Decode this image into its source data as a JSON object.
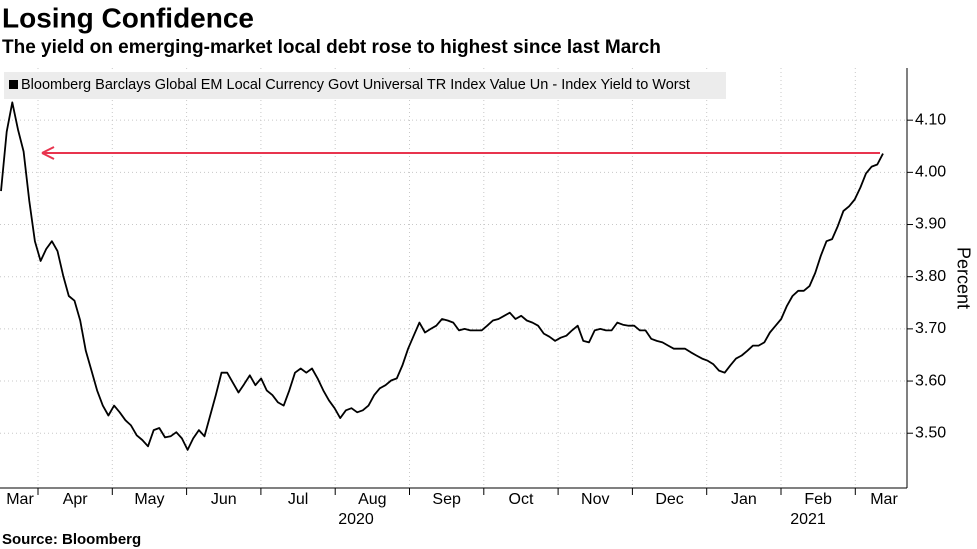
{
  "chart_data": {
    "type": "line",
    "title": "Losing Confidence",
    "subtitle": "The yield on emerging-market local debt rose to highest since last March",
    "source": "Source: Bloomberg",
    "y_axis_label": "Percent",
    "x_axis_labels": [
      "Mar",
      "Apr",
      "May",
      "Jun",
      "Jul",
      "Aug",
      "Sep",
      "Oct",
      "Nov",
      "Dec",
      "Jan",
      "Feb",
      "Mar"
    ],
    "x_axis_years": [
      "2020",
      "2021"
    ],
    "ylim": [
      3.395,
      4.2
    ],
    "yticks": [
      {
        "value": 3.5,
        "label": "3.50"
      },
      {
        "value": 3.6,
        "label": "3.60"
      },
      {
        "value": 3.7,
        "label": "3.70"
      },
      {
        "value": 3.8,
        "label": "3.80"
      },
      {
        "value": 3.9,
        "label": "3.90"
      },
      {
        "value": 4.0,
        "label": "4.00"
      },
      {
        "value": 4.1,
        "label": "4.10"
      }
    ],
    "grid": true,
    "series": [
      {
        "name": "Bloomberg Barclays Global EM Local Currency Govt Universal TR Index Value Un - Index Yield to Worst",
        "color": "#000000",
        "values": [
          3.964,
          4.078,
          4.134,
          4.082,
          4.04,
          3.945,
          3.868,
          3.83,
          3.853,
          3.868,
          3.849,
          3.802,
          3.763,
          3.754,
          3.716,
          3.658,
          3.62,
          3.582,
          3.553,
          3.534,
          3.553,
          3.54,
          3.525,
          3.515,
          3.496,
          3.487,
          3.475,
          3.506,
          3.51,
          3.492,
          3.494,
          3.502,
          3.49,
          3.468,
          3.49,
          3.506,
          3.494,
          3.534,
          3.573,
          3.616,
          3.616,
          3.597,
          3.578,
          3.594,
          3.611,
          3.592,
          3.605,
          3.582,
          3.573,
          3.559,
          3.553,
          3.582,
          3.616,
          3.624,
          3.616,
          3.624,
          3.605,
          3.582,
          3.563,
          3.548,
          3.529,
          3.544,
          3.548,
          3.54,
          3.544,
          3.553,
          3.573,
          3.586,
          3.592,
          3.601,
          3.605,
          3.63,
          3.662,
          3.687,
          3.712,
          3.693,
          3.7,
          3.706,
          3.719,
          3.716,
          3.712,
          3.697,
          3.7,
          3.697,
          3.697,
          3.697,
          3.706,
          3.716,
          3.719,
          3.725,
          3.731,
          3.719,
          3.725,
          3.716,
          3.712,
          3.706,
          3.691,
          3.685,
          3.677,
          3.683,
          3.687,
          3.697,
          3.706,
          3.677,
          3.674,
          3.697,
          3.7,
          3.697,
          3.697,
          3.712,
          3.708,
          3.706,
          3.706,
          3.697,
          3.697,
          3.681,
          3.677,
          3.674,
          3.668,
          3.662,
          3.662,
          3.662,
          3.655,
          3.649,
          3.643,
          3.639,
          3.632,
          3.62,
          3.616,
          3.63,
          3.643,
          3.649,
          3.658,
          3.668,
          3.668,
          3.674,
          3.693,
          3.706,
          3.719,
          3.744,
          3.763,
          3.773,
          3.773,
          3.782,
          3.807,
          3.84,
          3.868,
          3.872,
          3.897,
          3.926,
          3.935,
          3.948,
          3.971,
          3.998,
          4.011,
          4.015,
          4.036
        ]
      }
    ]
  }
}
